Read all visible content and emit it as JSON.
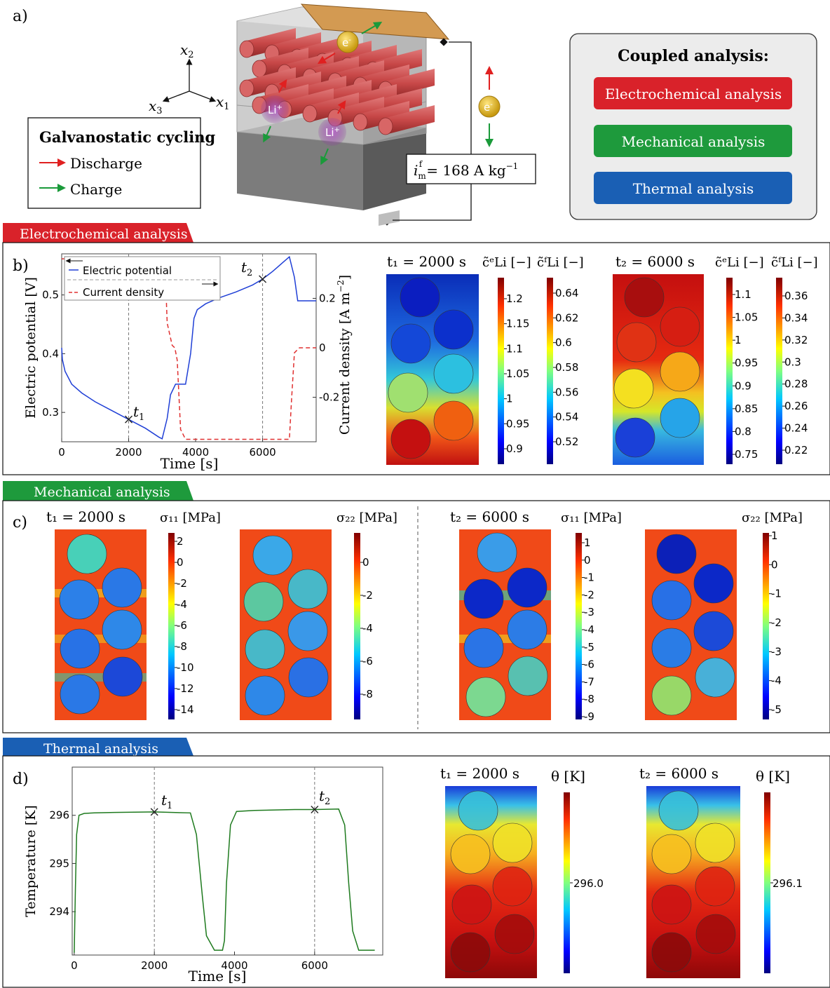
{
  "panel_a": {
    "label": "a)",
    "axes": {
      "x1": "x",
      "x1_sub": "1",
      "x2": "x",
      "x2_sub": "2",
      "x3": "x",
      "x3_sub": "3"
    },
    "cycling_title": "Galvanostatic cycling",
    "legend": [
      {
        "label": "Discharge",
        "color": "#e02020"
      },
      {
        "label": "Charge",
        "color": "#1a9a3a"
      }
    ],
    "electron": "e",
    "electron_sup": "-",
    "li_ion": "Li",
    "li_sup": "+",
    "current_lhs": "i",
    "current_sub": "m",
    "current_sup": "f",
    "current_value": "= 168 A kg",
    "current_unit_sup": "−1",
    "coupled_title": "Coupled analysis:",
    "coupled_buttons": [
      {
        "label": "Electrochemical analysis",
        "color": "#d9222a"
      },
      {
        "label": "Mechanical analysis",
        "color": "#1e9a3c"
      },
      {
        "label": "Thermal analysis",
        "color": "#1a5fb4"
      }
    ]
  },
  "sections": {
    "electrochemical": "Electrochemical analysis",
    "mechanical": "Mechanical analysis",
    "thermal": "Thermal analysis"
  },
  "colors": {
    "electrochemical": "#d9222a",
    "mechanical": "#1e9a3c",
    "thermal": "#1a5fb4"
  },
  "panel_b": {
    "label": "b)",
    "xlabel": "Time [s]",
    "ylabel_left": "Electric potential [V]",
    "ylabel_right": "Current density [A m",
    "ylabel_right_sup": "−2",
    "ylabel_right_end": "]",
    "legend": [
      "Electric potential",
      "Current density"
    ],
    "t1_label": "t",
    "t1_sub": "1",
    "t2_label": "t",
    "t2_sub": "2",
    "map_t1_title": "t₁ = 2000 s",
    "map_t2_title": "t₂ = 6000 s",
    "cbar_e_title": "c̃ᵉLi [−]",
    "cbar_f_title": "c̃ᶠLi [−]",
    "cbar_t1_e_ticks": [
      "1.2",
      "1.15",
      "1.1",
      "1.05",
      "1",
      "0.95",
      "0.9"
    ],
    "cbar_t1_f_ticks": [
      "0.64",
      "0.62",
      "0.6",
      "0.58",
      "0.56",
      "0.54",
      "0.52"
    ],
    "cbar_t2_e_ticks": [
      "1.1",
      "1.05",
      "1",
      "0.95",
      "0.9",
      "0.85",
      "0.8",
      "0.75"
    ],
    "cbar_t2_f_ticks": [
      "0.36",
      "0.34",
      "0.32",
      "0.3",
      "0.28",
      "0.26",
      "0.24",
      "0.22"
    ]
  },
  "panel_c": {
    "label": "c)",
    "t1_title": "t₁ = 2000 s",
    "t2_title": "t₂ = 6000 s",
    "s11_title": "σ₁₁ [MPa]",
    "s22_title": "σ₂₂ [MPa]",
    "t1_s11_ticks": [
      "2",
      "0",
      "-2",
      "-4",
      "-6",
      "-8",
      "-10",
      "-12",
      "-14"
    ],
    "t1_s22_ticks": [
      "0",
      "-2",
      "-4",
      "-6",
      "-8"
    ],
    "t2_s11_ticks": [
      "1",
      "0",
      "-1",
      "-2",
      "-3",
      "-4",
      "-5",
      "-6",
      "-7",
      "-8",
      "-9"
    ],
    "t2_s22_ticks": [
      "1",
      "0",
      "-1",
      "-2",
      "-3",
      "-4",
      "-5"
    ]
  },
  "panel_d": {
    "label": "d)",
    "xlabel": "Time [s]",
    "ylabel": "Temperature [K]",
    "t1_label": "t",
    "t1_sub": "1",
    "t2_label": "t",
    "t2_sub": "2",
    "map_t1_title": "t₁ = 2000 s",
    "map_t2_title": "t₂ = 6000 s",
    "theta_title": "θ [K]",
    "cbar_t1_tick": "296.0",
    "cbar_t2_tick": "296.1"
  },
  "chart_data": [
    {
      "type": "line",
      "xlabel": "Time [s]",
      "ylabel": "Electric potential [V]",
      "y2label": "Current density [A m−2]",
      "xlim": [
        0,
        7600
      ],
      "ylim": [
        0.25,
        0.57
      ],
      "y2lim": [
        -0.38,
        0.38
      ],
      "xticks": [
        "0",
        "2000",
        "4000",
        "6000"
      ],
      "yticks": [
        "0.3",
        "0.4",
        "0.5"
      ],
      "y2ticks": [
        "-0.2",
        "0",
        "0.2"
      ],
      "series": [
        {
          "name": "Electric potential",
          "axis": "left",
          "color": "#1f3fd6",
          "style": "solid",
          "x": [
            0,
            20,
            100,
            300,
            600,
            1000,
            1500,
            2000,
            2500,
            2900,
            3000,
            3150,
            3250,
            3400,
            3700,
            3850,
            3950,
            4050,
            4300,
            4700,
            5200,
            5700,
            6000,
            6300,
            6600,
            6800,
            6950,
            7050,
            7600
          ],
          "y": [
            0.41,
            0.39,
            0.37,
            0.348,
            0.333,
            0.318,
            0.303,
            0.288,
            0.273,
            0.258,
            0.255,
            0.29,
            0.33,
            0.348,
            0.348,
            0.4,
            0.46,
            0.475,
            0.485,
            0.495,
            0.505,
            0.517,
            0.527,
            0.54,
            0.555,
            0.565,
            0.53,
            0.49,
            0.49
          ]
        },
        {
          "name": "Current density",
          "axis": "right",
          "color": "#e03030",
          "style": "dashed",
          "x": [
            0,
            2500,
            3080,
            3150,
            3300,
            3380,
            3450,
            3550,
            3700,
            4000,
            5000,
            6000,
            6800,
            6870,
            6950,
            7100,
            7600
          ],
          "y": [
            0.36,
            0.36,
            0.36,
            0.1,
            0.01,
            0.0,
            -0.05,
            -0.33,
            -0.37,
            -0.37,
            -0.37,
            -0.37,
            -0.37,
            -0.2,
            -0.02,
            0.0,
            0.0
          ]
        }
      ],
      "annotations": [
        {
          "label": "t1",
          "x": 2000,
          "y": 0.288
        },
        {
          "label": "t2",
          "x": 6000,
          "y": 0.527
        }
      ]
    },
    {
      "type": "line",
      "xlabel": "Time [s]",
      "ylabel": "Temperature [K]",
      "xlim": [
        -50,
        7700
      ],
      "ylim": [
        293.1,
        297.0
      ],
      "xticks": [
        "0",
        "2000",
        "4000",
        "6000"
      ],
      "yticks": [
        "294",
        "295",
        "296"
      ],
      "series": [
        {
          "name": "",
          "color": "#1e7a1e",
          "style": "solid",
          "x": [
            0,
            30,
            60,
            120,
            250,
            500,
            1000,
            2000,
            2900,
            3050,
            3200,
            3300,
            3500,
            3700,
            3750,
            3800,
            3900,
            4050,
            4500,
            5500,
            6000,
            6600,
            6750,
            6850,
            6950,
            7100,
            7500
          ],
          "y": [
            293.15,
            294.5,
            295.6,
            296.0,
            296.04,
            296.05,
            296.06,
            296.07,
            296.05,
            295.6,
            294.3,
            293.5,
            293.2,
            293.2,
            293.4,
            294.6,
            295.8,
            296.08,
            296.1,
            296.12,
            296.12,
            296.13,
            295.8,
            294.6,
            293.6,
            293.2,
            293.2
          ]
        }
      ],
      "annotations": [
        {
          "label": "t1",
          "x": 2000,
          "y": 296.07
        },
        {
          "label": "t2",
          "x": 6000,
          "y": 296.12
        }
      ]
    }
  ]
}
